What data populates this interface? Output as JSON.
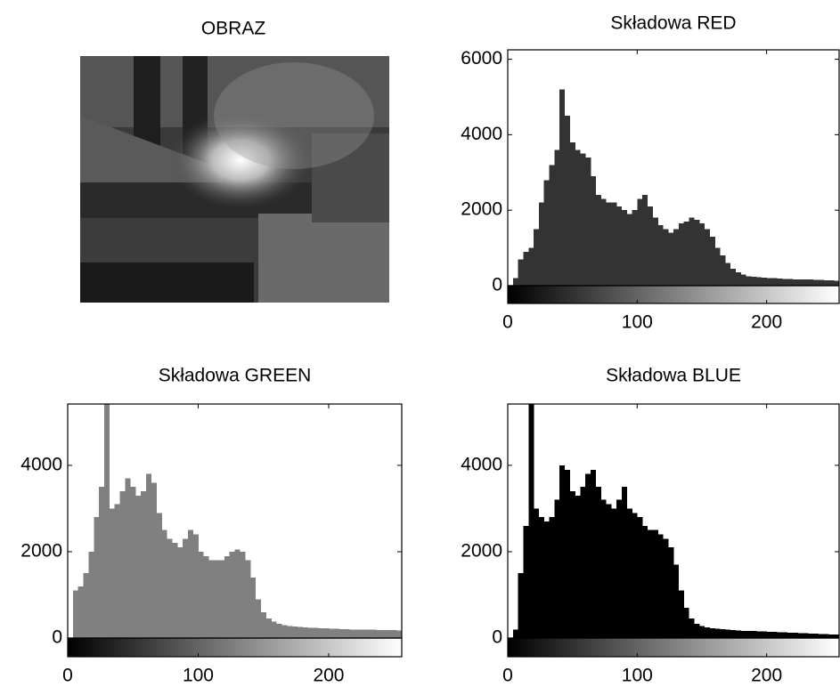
{
  "chart_data": [
    {
      "type": "image",
      "title": "OBRAZ"
    },
    {
      "type": "histogram",
      "title": "Składowa RED",
      "color": "#333333",
      "bins": [
        0,
        4,
        8,
        12,
        16,
        20,
        24,
        28,
        32,
        36,
        40,
        44,
        48,
        52,
        56,
        60,
        64,
        68,
        72,
        76,
        80,
        84,
        88,
        92,
        96,
        100,
        104,
        108,
        112,
        116,
        120,
        124,
        128,
        132,
        136,
        140,
        144,
        148,
        152,
        156,
        160,
        164,
        168,
        172,
        176,
        180,
        184,
        188,
        192,
        196,
        200,
        204,
        208,
        212,
        216,
        220,
        224,
        228,
        232,
        236,
        240,
        244,
        248,
        252,
        256
      ],
      "values": [
        0,
        200,
        700,
        900,
        1000,
        1500,
        2200,
        2800,
        3200,
        3600,
        5200,
        4500,
        3800,
        3600,
        3500,
        3400,
        2900,
        2400,
        2300,
        2200,
        2200,
        2100,
        2000,
        1900,
        2000,
        2300,
        2400,
        2100,
        1800,
        1600,
        1500,
        1400,
        1500,
        1650,
        1700,
        1800,
        1750,
        1650,
        1500,
        1300,
        1000,
        800,
        600,
        450,
        350,
        300,
        250,
        230,
        220,
        210,
        200,
        200,
        190,
        180,
        180,
        170,
        170,
        160,
        160,
        150,
        150,
        140,
        140,
        130
      ],
      "xlim": [
        0,
        256
      ],
      "xticks": [
        0,
        100,
        200
      ],
      "ylim": [
        0,
        6250
      ],
      "yticks": [
        0,
        2000,
        4000,
        6000
      ]
    },
    {
      "type": "histogram",
      "title": "Składowa GREEN",
      "color": "#808080",
      "bins": [
        0,
        4,
        8,
        12,
        16,
        20,
        24,
        28,
        32,
        36,
        40,
        44,
        48,
        52,
        56,
        60,
        64,
        68,
        72,
        76,
        80,
        84,
        88,
        92,
        96,
        100,
        104,
        108,
        112,
        116,
        120,
        124,
        128,
        132,
        136,
        140,
        144,
        148,
        152,
        156,
        160,
        164,
        168,
        172,
        176,
        180,
        184,
        188,
        192,
        196,
        200,
        204,
        208,
        212,
        216,
        220,
        224,
        228,
        232,
        236,
        240,
        244,
        248,
        252,
        256
      ],
      "values": [
        0,
        1100,
        1200,
        1500,
        2000,
        2800,
        3500,
        5420,
        3000,
        3100,
        3400,
        3700,
        3500,
        3300,
        3400,
        3800,
        3600,
        2900,
        2500,
        2300,
        2200,
        2100,
        2300,
        2500,
        2400,
        2000,
        1900,
        1800,
        1800,
        1800,
        1900,
        2000,
        2050,
        2000,
        1800,
        1400,
        900,
        600,
        450,
        380,
        330,
        300,
        280,
        270,
        260,
        250,
        240,
        235,
        230,
        225,
        220,
        215,
        210,
        205,
        200,
        200,
        200,
        195,
        195,
        190,
        190,
        185,
        185,
        180
      ],
      "xlim": [
        0,
        256
      ],
      "xticks": [
        0,
        100,
        200
      ],
      "ylim": [
        0,
        5420
      ],
      "yticks": [
        0,
        2000,
        4000
      ]
    },
    {
      "type": "histogram",
      "title": "Składowa BLUE",
      "color": "#000000",
      "bins": [
        0,
        4,
        8,
        12,
        16,
        20,
        24,
        28,
        32,
        36,
        40,
        44,
        48,
        52,
        56,
        60,
        64,
        68,
        72,
        76,
        80,
        84,
        88,
        92,
        96,
        100,
        104,
        108,
        112,
        116,
        120,
        124,
        128,
        132,
        136,
        140,
        144,
        148,
        152,
        156,
        160,
        164,
        168,
        172,
        176,
        180,
        184,
        188,
        192,
        196,
        200,
        204,
        208,
        212,
        216,
        220,
        224,
        228,
        232,
        236,
        240,
        244,
        248,
        252,
        256
      ],
      "values": [
        0,
        200,
        1500,
        2600,
        5420,
        3000,
        2800,
        2700,
        2800,
        3200,
        4000,
        3900,
        3400,
        3300,
        3500,
        3800,
        3900,
        3500,
        3200,
        3100,
        3000,
        3200,
        3500,
        3000,
        2900,
        2800,
        2600,
        2500,
        2500,
        2400,
        2300,
        2100,
        1700,
        1100,
        700,
        450,
        330,
        280,
        250,
        230,
        220,
        210,
        200,
        190,
        180,
        170,
        165,
        160,
        155,
        150,
        145,
        140,
        135,
        130,
        125,
        120,
        115,
        110,
        105,
        100,
        95,
        90,
        85,
        80
      ],
      "xlim": [
        0,
        256
      ],
      "xticks": [
        0,
        100,
        200
      ],
      "ylim": [
        0,
        5420
      ],
      "yticks": [
        0,
        2000,
        4000
      ]
    }
  ]
}
